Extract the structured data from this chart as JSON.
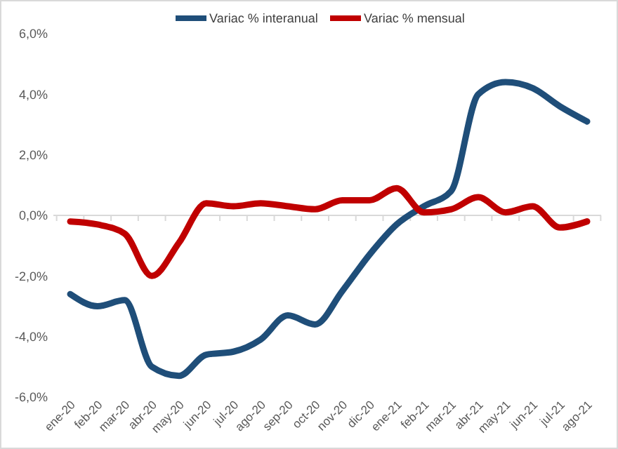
{
  "chart_data": {
    "type": "line",
    "categories": [
      "ene-20",
      "feb-20",
      "mar-20",
      "abr-20",
      "may-20",
      "jun-20",
      "jul-20",
      "ago-20",
      "sep-20",
      "oct-20",
      "nov-20",
      "dic-20",
      "ene-21",
      "feb-21",
      "mar-21",
      "abr-21",
      "may-21",
      "jun-21",
      "jul-21",
      "ago-21"
    ],
    "series": [
      {
        "name": "Variac % interanual",
        "color": "#1f4e79",
        "values": [
          -2.6,
          -3.0,
          -2.8,
          -5.0,
          -5.3,
          -4.6,
          -4.5,
          -4.1,
          -3.3,
          -3.6,
          -2.5,
          -1.3,
          -0.3,
          0.3,
          0.8,
          4.0,
          4.4,
          4.2,
          3.6,
          3.1
        ]
      },
      {
        "name": "Variac % mensual",
        "color": "#c00000",
        "values": [
          -0.2,
          -0.3,
          -0.6,
          -2.0,
          -0.9,
          0.4,
          0.3,
          0.4,
          0.3,
          0.2,
          0.5,
          0.5,
          0.9,
          0.1,
          0.2,
          0.6,
          0.1,
          0.3,
          -0.4,
          -0.2
        ]
      }
    ],
    "ylim": [
      -6,
      6
    ],
    "yticks": [
      {
        "value": -6,
        "label": "-6,0%"
      },
      {
        "value": -4,
        "label": "-4,0%"
      },
      {
        "value": -2,
        "label": "-2,0%"
      },
      {
        "value": 0,
        "label": "0,0%"
      },
      {
        "value": 2,
        "label": "2,0%"
      },
      {
        "value": 4,
        "label": "4,0%"
      },
      {
        "value": 6,
        "label": "6,0%"
      }
    ],
    "legend": "top",
    "line_style": "solid",
    "marker": "none"
  }
}
